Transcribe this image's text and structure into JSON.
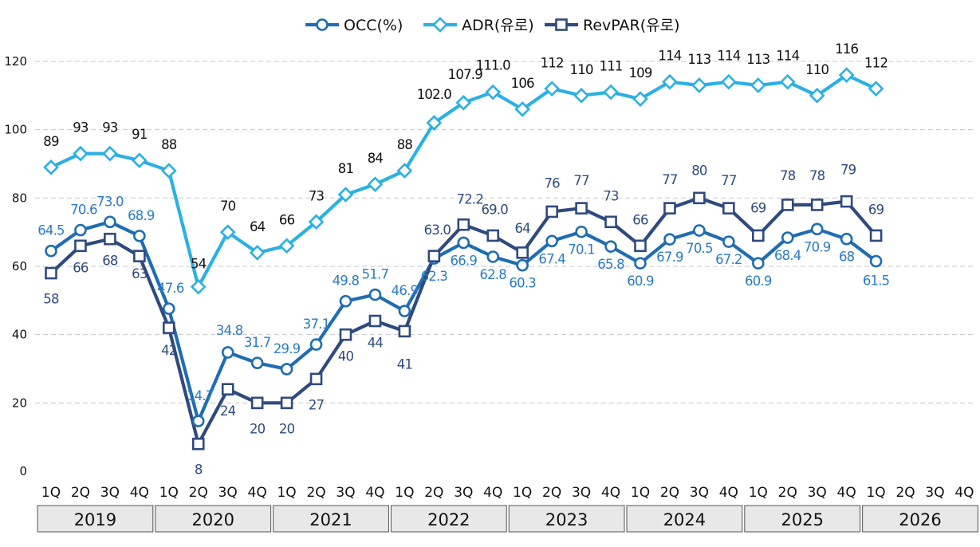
{
  "chart_data": {
    "type": "line",
    "years": [
      "2019",
      "2020",
      "2021",
      "2022",
      "2023",
      "2024",
      "2025",
      "2026"
    ],
    "categories": [
      "1Q",
      "2Q",
      "3Q",
      "4Q",
      "1Q",
      "2Q",
      "3Q",
      "4Q",
      "1Q",
      "2Q",
      "3Q",
      "4Q",
      "1Q",
      "2Q",
      "3Q",
      "4Q",
      "1Q",
      "2Q",
      "3Q",
      "4Q",
      "1Q",
      "2Q",
      "3Q",
      "4Q",
      "1Q",
      "2Q",
      "3Q",
      "4Q",
      "1Q",
      "2Q",
      "3Q",
      "4Q"
    ],
    "ylim": [
      0,
      120
    ],
    "yticks": [
      0,
      20,
      40,
      60,
      80,
      100,
      120
    ],
    "grid": true,
    "legend_position": "top-center",
    "series": [
      {
        "name": "OCC(%)",
        "color": "#1F6DB2",
        "marker": "circle",
        "values": [
          64.5,
          70.6,
          73.0,
          68.9,
          47.6,
          14.7,
          34.8,
          31.7,
          29.9,
          37.1,
          49.8,
          51.7,
          46.9,
          62.3,
          66.9,
          62.8,
          60.3,
          67.4,
          70.1,
          65.8,
          60.9,
          67.9,
          70.5,
          67.2,
          60.9,
          68.4,
          70.9,
          68,
          61.5,
          null,
          null,
          null
        ],
        "labels": [
          "64.5",
          "70.6",
          "73.0",
          "68.9",
          "47.6",
          "14.7",
          "34.8",
          "31.7",
          "29.9",
          "37.1",
          "49.8",
          "51.7",
          "46.9",
          "62.3",
          "66.9",
          "62.8",
          "60.3",
          "67.4",
          "70.1",
          "65.8",
          "60.9",
          "67.9",
          "70.5",
          "67.2",
          "60.9",
          "68.4",
          "70.9",
          "68",
          "61.5",
          null,
          null,
          null
        ]
      },
      {
        "name": "ADR(유로)",
        "color": "#2BB0E4",
        "marker": "diamond",
        "values": [
          89,
          93,
          93,
          91,
          88,
          54,
          70,
          64,
          66,
          73,
          81,
          84,
          88,
          102.0,
          107.9,
          111.0,
          106,
          112,
          110,
          111,
          109,
          114,
          113,
          114,
          113,
          114,
          110,
          116,
          112,
          null,
          null,
          null
        ],
        "labels": [
          "89",
          "93",
          "93",
          "91",
          "88",
          "54",
          "70",
          "64",
          "66",
          "73",
          "81",
          "84",
          "88",
          "102.0",
          "107.9",
          "111.0",
          "106",
          "112",
          "110",
          "111",
          "109",
          "114",
          "113",
          "114",
          "113",
          "114",
          "110",
          "116",
          "112",
          null,
          null,
          null
        ]
      },
      {
        "name": "RevPAR(유로)",
        "color": "#2F4A7F",
        "marker": "square",
        "values": [
          58,
          66,
          68,
          63,
          42,
          8,
          24,
          20,
          20,
          27,
          40,
          44,
          41,
          63.0,
          72.2,
          69.0,
          64,
          76,
          77,
          73,
          66,
          77,
          80,
          77,
          69,
          78,
          78,
          79,
          69,
          null,
          null,
          null
        ],
        "labels": [
          "58",
          "66",
          "68",
          "63",
          "42",
          "8",
          "24",
          "20",
          "20",
          "27",
          "40",
          "44",
          "41",
          "63.0",
          "72.2",
          "69.0",
          "64",
          "76",
          "77",
          "73",
          "66",
          "77",
          "80",
          "77",
          "69",
          "78",
          "78",
          "79",
          "69",
          null,
          null,
          null
        ]
      }
    ]
  }
}
